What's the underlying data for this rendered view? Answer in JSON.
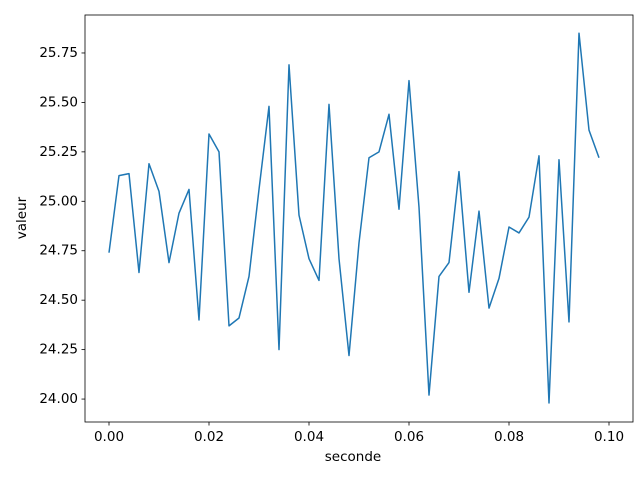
{
  "chart_data": {
    "type": "line",
    "x_label": "seconde",
    "y_label": "valeur",
    "x": [
      0,
      0.002,
      0.004,
      0.006,
      0.008,
      0.01,
      0.012,
      0.014,
      0.016,
      0.018,
      0.02,
      0.022,
      0.024,
      0.026,
      0.028,
      0.03,
      0.032,
      0.034,
      0.036,
      0.038,
      0.04,
      0.042,
      0.044,
      0.046,
      0.048,
      0.05,
      0.052,
      0.054,
      0.056,
      0.058,
      0.06,
      0.062,
      0.064,
      0.066,
      0.068,
      0.07,
      0.072,
      0.074,
      0.076,
      0.078,
      0.08,
      0.082,
      0.084,
      0.086,
      0.088,
      0.09,
      0.092,
      0.094,
      0.096,
      0.098
    ],
    "values": [
      24.74,
      25.13,
      25.14,
      24.64,
      25.19,
      25.05,
      24.69,
      24.94,
      25.06,
      24.4,
      25.34,
      25.25,
      24.37,
      24.41,
      24.62,
      25.06,
      25.48,
      24.25,
      25.69,
      24.93,
      24.71,
      24.6,
      25.49,
      24.71,
      24.22,
      24.79,
      25.22,
      25.25,
      25.44,
      24.96,
      25.61,
      24.97,
      24.02,
      24.62,
      24.69,
      25.15,
      24.54,
      24.95,
      24.46,
      24.61,
      24.87,
      24.84,
      24.92,
      25.23,
      23.98,
      25.21,
      24.39,
      25.85,
      25.36,
      25.22
    ],
    "color": "#1f77b4",
    "xlim": [
      -0.0048,
      0.1048
    ],
    "xticks": [
      {
        "value": 0,
        "label": "0.00"
      },
      0.02,
      0.04,
      0.06,
      0.08,
      {
        "value": 0.1,
        "label": "0.10"
      }
    ],
    "ylim": [
      23.884,
      25.942
    ],
    "yticks": [
      {
        "value": 24,
        "label": "24.00"
      },
      24.25,
      {
        "value": 24.5,
        "label": "24.50"
      },
      24.75,
      {
        "value": 25,
        "label": "25.00"
      },
      25.25,
      {
        "value": 25.5,
        "label": "25.50"
      },
      25.75
    ],
    "grid": false
  }
}
